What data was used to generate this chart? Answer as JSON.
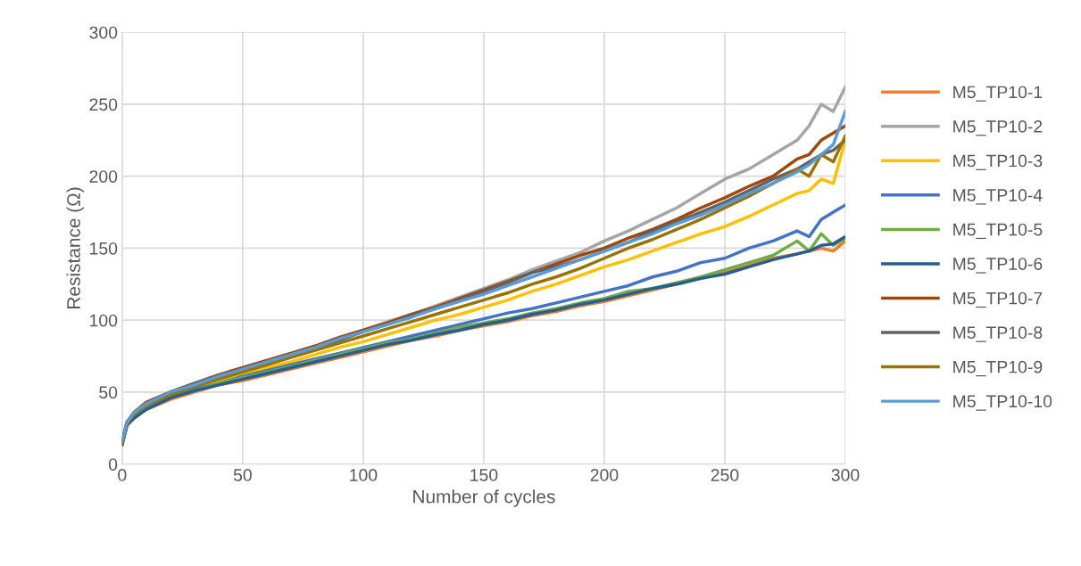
{
  "chart_data": {
    "type": "line",
    "xlabel": "Number of cycles",
    "ylabel": "Resistance (Ω)",
    "x": [
      0,
      2,
      5,
      10,
      20,
      30,
      40,
      50,
      60,
      70,
      80,
      90,
      100,
      110,
      120,
      130,
      140,
      150,
      160,
      170,
      180,
      190,
      200,
      210,
      220,
      230,
      240,
      250,
      260,
      270,
      280,
      285,
      290,
      295,
      300
    ],
    "xlim": [
      0,
      300
    ],
    "xticks": [
      0,
      50,
      100,
      150,
      200,
      250,
      300
    ],
    "ylim": [
      0,
      300
    ],
    "yticks": [
      0,
      50,
      100,
      150,
      200,
      250,
      300
    ],
    "grid": true,
    "legend": "right",
    "line_style": "solid",
    "series": [
      {
        "name": "M5_TP10-1",
        "color": "#ed7d31",
        "values": [
          13,
          27,
          32,
          38,
          45,
          50,
          55,
          58,
          62,
          66,
          70,
          74,
          78,
          82,
          86,
          89,
          93,
          96,
          99,
          103,
          106,
          110,
          113,
          117,
          121,
          125,
          129,
          133,
          138,
          143,
          146,
          148,
          150,
          148,
          155
        ]
      },
      {
        "name": "M5_TP10-2",
        "color": "#a5a5a5",
        "values": [
          16,
          29,
          36,
          43,
          50,
          56,
          62,
          67,
          72,
          77,
          82,
          88,
          93,
          99,
          104,
          110,
          116,
          122,
          128,
          135,
          141,
          147,
          155,
          162,
          170,
          178,
          188,
          198,
          205,
          215,
          225,
          235,
          250,
          245,
          262
        ]
      },
      {
        "name": "M5_TP10-3",
        "color": "#ffc000",
        "values": [
          null,
          null,
          null,
          null,
          null,
          53,
          58,
          62,
          67,
          71,
          76,
          81,
          85,
          90,
          95,
          100,
          104,
          109,
          114,
          120,
          125,
          131,
          137,
          142,
          148,
          154,
          160,
          165,
          172,
          180,
          188,
          190,
          198,
          195,
          225
        ]
      },
      {
        "name": "M5_TP10-4",
        "color": "#4472c4",
        "values": [
          14,
          27,
          33,
          39,
          46,
          52,
          56,
          61,
          65,
          69,
          73,
          77,
          81,
          85,
          89,
          93,
          97,
          101,
          105,
          108,
          112,
          116,
          120,
          124,
          130,
          134,
          140,
          143,
          150,
          155,
          162,
          158,
          170,
          175,
          180
        ]
      },
      {
        "name": "M5_TP10-5",
        "color": "#70ad47",
        "values": [
          14,
          27,
          33,
          39,
          46,
          51,
          56,
          60,
          64,
          68,
          72,
          76,
          80,
          84,
          87,
          91,
          95,
          98,
          101,
          105,
          108,
          112,
          115,
          120,
          122,
          126,
          130,
          135,
          140,
          145,
          155,
          148,
          160,
          152,
          157
        ]
      },
      {
        "name": "M5_TP10-6",
        "color": "#255e91",
        "values": [
          14,
          27,
          32,
          38,
          46,
          51,
          55,
          59,
          63,
          67,
          71,
          75,
          79,
          83,
          86,
          90,
          93,
          97,
          100,
          104,
          107,
          111,
          114,
          118,
          122,
          125,
          129,
          132,
          137,
          142,
          146,
          148,
          152,
          153,
          158
        ]
      },
      {
        "name": "M5_TP10-7",
        "color": "#9e480e",
        "values": [
          16,
          29,
          36,
          43,
          50,
          56,
          62,
          67,
          72,
          77,
          82,
          88,
          93,
          98,
          104,
          109,
          115,
          121,
          127,
          133,
          139,
          145,
          150,
          157,
          163,
          170,
          178,
          185,
          193,
          200,
          212,
          215,
          225,
          230,
          235
        ]
      },
      {
        "name": "M5_TP10-8",
        "color": "#636363",
        "values": [
          16,
          29,
          36,
          42,
          50,
          56,
          61,
          66,
          71,
          76,
          81,
          86,
          92,
          97,
          103,
          108,
          114,
          120,
          126,
          133,
          137,
          142,
          148,
          154,
          162,
          168,
          175,
          182,
          190,
          198,
          205,
          210,
          215,
          218,
          225
        ]
      },
      {
        "name": "M5_TP10-9",
        "color": "#997300",
        "values": [
          15,
          28,
          35,
          41,
          48,
          54,
          59,
          64,
          69,
          74,
          79,
          84,
          89,
          94,
          99,
          104,
          109,
          114,
          119,
          125,
          130,
          136,
          143,
          150,
          156,
          163,
          170,
          178,
          186,
          195,
          205,
          200,
          215,
          210,
          228
        ]
      },
      {
        "name": "M5_TP10-10",
        "color": "#5b9bd5",
        "values": [
          16,
          29,
          36,
          42,
          50,
          55,
          61,
          66,
          71,
          76,
          81,
          87,
          92,
          97,
          102,
          108,
          113,
          118,
          124,
          130,
          136,
          142,
          148,
          154,
          160,
          167,
          173,
          180,
          188,
          195,
          203,
          208,
          215,
          222,
          245
        ]
      }
    ]
  }
}
